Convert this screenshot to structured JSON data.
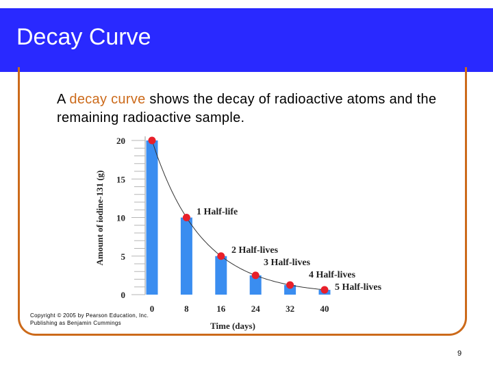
{
  "slide": {
    "title": "Decay Curve",
    "intro_before": "A ",
    "intro_highlight": "decay curve",
    "intro_after": " shows the decay of radioactive atoms and the remaining radioactive sample.",
    "copyright_line1": "Copyright © 2005 by Pearson Education, Inc.",
    "copyright_line2": "Publishing as Benjamin Cummings",
    "page_number": "9"
  },
  "colors": {
    "title_bar": "#2929ff",
    "frame": "#cc6a1a",
    "highlight": "#cc6a1a",
    "bar": "#3a8df0",
    "point": "#e8202a",
    "curve": "#333333"
  },
  "chart_data": {
    "type": "bar",
    "xlabel": "Time (days)",
    "ylabel": "Amount of iodine-131 (g)",
    "categories": [
      "0",
      "8",
      "16",
      "24",
      "32",
      "40"
    ],
    "x": [
      0,
      8,
      16,
      24,
      32,
      40
    ],
    "values": [
      20,
      10,
      5,
      2.5,
      1.25,
      0.625
    ],
    "ylim": [
      0,
      20
    ],
    "yticks": [
      0,
      5,
      10,
      15,
      20
    ],
    "ytick_labels": [
      "0",
      "5",
      "10",
      "15",
      "20"
    ],
    "curve": "exponential decay through bar tops",
    "annotations": [
      "1 Half-life",
      "2 Half-lives",
      "3 Half-lives",
      "4 Half-lives",
      "5 Half-lives"
    ],
    "grid": false,
    "legend": "none"
  }
}
